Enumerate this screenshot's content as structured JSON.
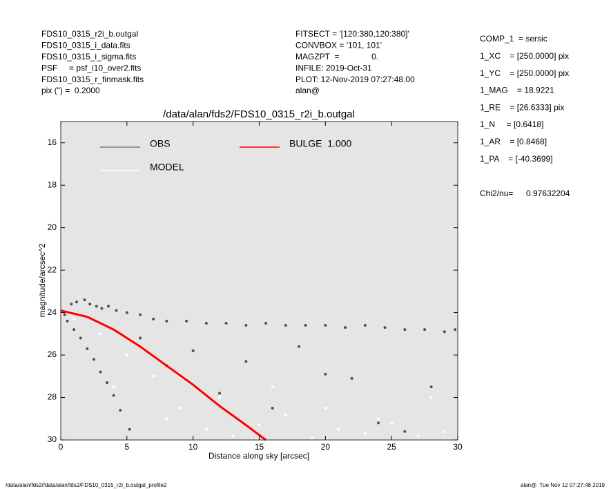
{
  "header": {
    "left": [
      "FDS10_0315_r2i_b.outgal",
      "FDS10_0315_i_data.fits",
      "FDS10_0315_i_sigma.fits",
      "PSF     = psf_i10_over2.fits",
      "FDS10_0315_r_finmask.fits",
      "pix (\") =  0.2000"
    ],
    "middle": [
      "FITSECT = '[120:380,120:380]'",
      "CONVBOX = '101, 101'",
      "MAGZPT  =              0.",
      "INFILE: 2019-Oct-31",
      "PLOT: 12-Nov-2019 07:27:48.00",
      "alan@"
    ],
    "params": [
      "COMP_1  = sersic",
      "1_XC    = [250.0000] pix",
      "1_YC    = [250.0000] pix",
      "1_MAG    = 18.9221",
      "1_RE    = [26.6333] pix",
      "1_N     = [0.6418]",
      "1_AR    = [0.8468]",
      "1_PA    = [-40.3699]"
    ],
    "chi2_label": "Chi2/nu=",
    "chi2_value": "0.97632204"
  },
  "footer": {
    "left": "/data/alan/fds2//data/alan/fds2/FDS10_0315_r2i_b.outgal_profile2",
    "right": "alan@  Tue Nov 12 07:27:48 2019"
  },
  "chart_data": {
    "type": "scatter",
    "title": "/data/alan/fds2/FDS10_0315_r2i_b.outgal",
    "xlabel": "Distance along sky [arcsec]",
    "ylabel": "magnitude/arcsec^2",
    "xlim": [
      0,
      30
    ],
    "ylim": [
      30,
      15
    ],
    "xticks": [
      0,
      5,
      10,
      15,
      20,
      25,
      30
    ],
    "yticks": [
      16,
      18,
      20,
      22,
      24,
      26,
      28,
      30
    ],
    "background": "#e5e5e5",
    "series": [
      {
        "name": "OBS",
        "color": "#505050",
        "draw": "points",
        "x": [
          0.3,
          0.8,
          1.2,
          1.8,
          2.2,
          2.7,
          3.1,
          3.6,
          4.2,
          5.0,
          6,
          7,
          8,
          9.5,
          11,
          12.5,
          14,
          15.5,
          17,
          18.5,
          20,
          21.5,
          23,
          24.5,
          26,
          27.5,
          29,
          29.8,
          0.5,
          1.0,
          1.5,
          2.0,
          2.5,
          3.0,
          3.5,
          4.0,
          4.5,
          5.2,
          8,
          12,
          16,
          20,
          24,
          28,
          6,
          10,
          14,
          18,
          22,
          26
        ],
        "values": [
          24.1,
          23.6,
          23.5,
          23.4,
          23.6,
          23.7,
          23.8,
          23.7,
          23.9,
          24.0,
          24.1,
          24.3,
          24.4,
          24.4,
          24.5,
          24.5,
          24.6,
          24.5,
          24.6,
          24.6,
          24.6,
          24.7,
          24.6,
          24.7,
          24.8,
          24.8,
          24.9,
          24.8,
          24.4,
          24.8,
          25.2,
          25.7,
          26.2,
          26.8,
          27.3,
          27.9,
          28.6,
          29.5,
          26.5,
          27.8,
          28.5,
          26.9,
          29.2,
          27.5,
          25.2,
          25.8,
          26.3,
          25.6,
          27.1,
          29.6
        ]
      },
      {
        "name": "MODEL",
        "color": "#ffffff",
        "draw": "points",
        "x": [
          1,
          3,
          5,
          7,
          9,
          11,
          13,
          15,
          17,
          19,
          21,
          23,
          25,
          27,
          29,
          4,
          8,
          12,
          16,
          20,
          24,
          28
        ],
        "values": [
          24.3,
          25,
          26,
          27,
          28.5,
          29.5,
          29.8,
          29.3,
          28.8,
          29.9,
          29.5,
          29.7,
          29.2,
          29.8,
          29.6,
          27.5,
          29,
          28,
          27.5,
          28.5,
          29,
          28
        ]
      },
      {
        "name": "BULGE  1.000",
        "color": "#ff0000",
        "draw": "line",
        "x": [
          0,
          2,
          4,
          6,
          8,
          10,
          12,
          14,
          15.5
        ],
        "values": [
          23.9,
          24.2,
          24.8,
          25.6,
          26.5,
          27.4,
          28.4,
          29.3,
          30
        ]
      }
    ]
  }
}
